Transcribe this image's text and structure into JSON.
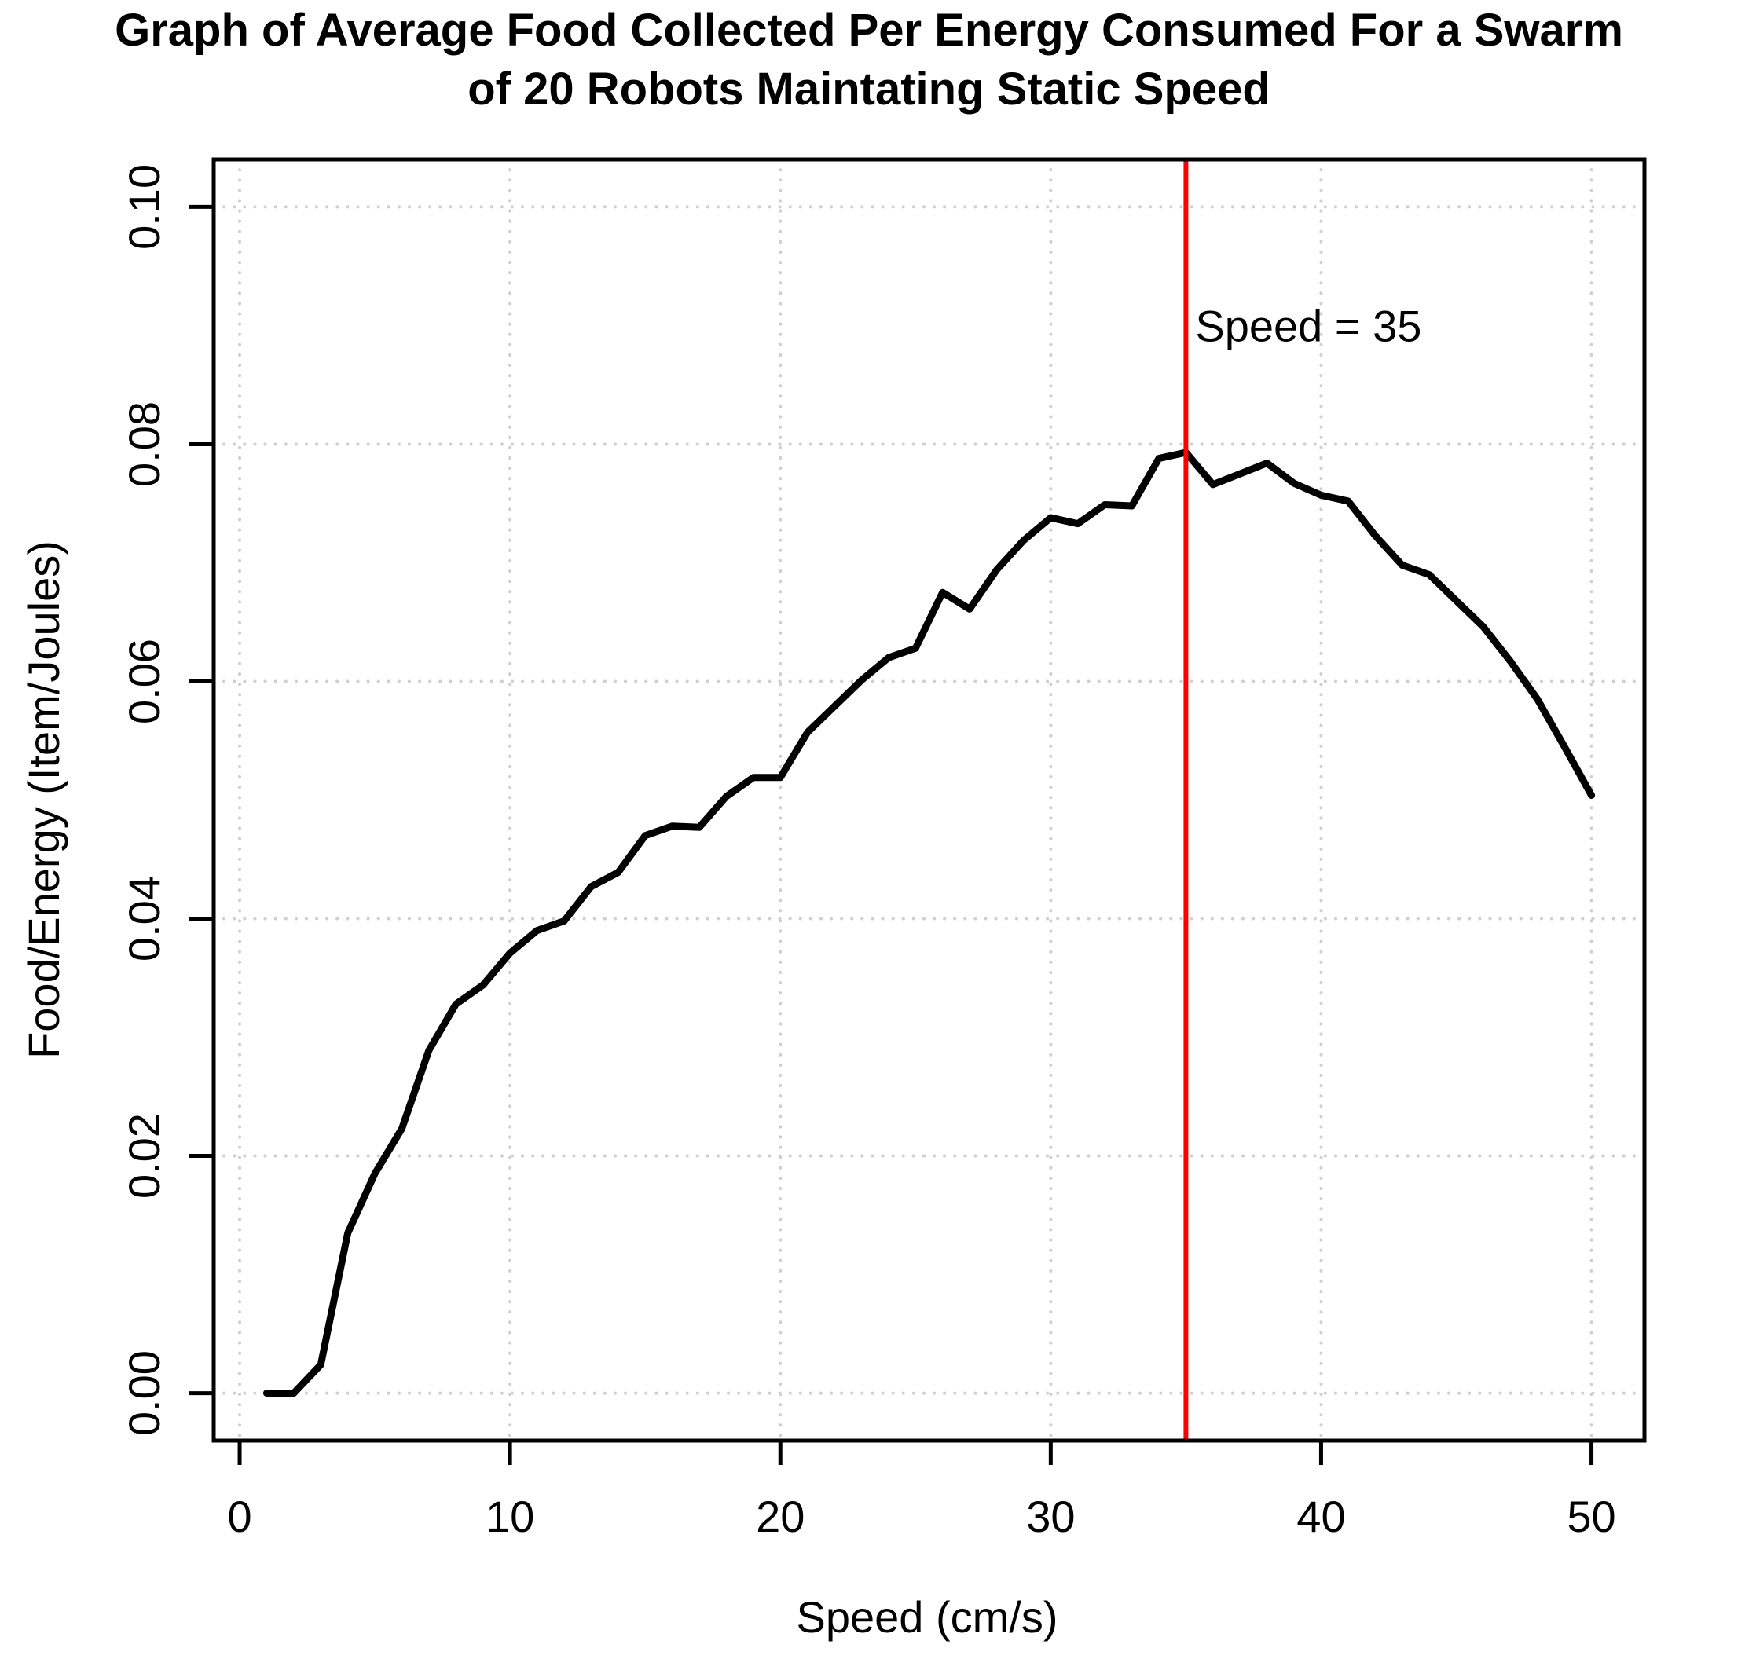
{
  "figure": {
    "title_line1": "Graph of Average Food Collected Per Energy Consumed For a Swarm",
    "title_line2": "of 20 Robots Maintating Static Speed"
  },
  "chart_data": {
    "type": "line",
    "title": "Graph of Average Food Collected Per Energy Consumed For a Swarm of 20 Robots Maintating Static Speed",
    "xlabel": "Speed (cm/s)",
    "ylabel": "Food/Energy (Item/Joules)",
    "xlim": [
      1,
      50
    ],
    "ylim": [
      0,
      0.1
    ],
    "x_tick_values": [
      0,
      10,
      20,
      30,
      40,
      50
    ],
    "x_tick_labels": [
      "0",
      "10",
      "20",
      "30",
      "40",
      "50"
    ],
    "y_tick_values": [
      0.0,
      0.02,
      0.04,
      0.06,
      0.08,
      0.1
    ],
    "y_tick_labels": [
      "0.00",
      "0.02",
      "0.04",
      "0.06",
      "0.08",
      "0.10"
    ],
    "grid": "dotted, at all tick positions",
    "legend": "none",
    "series": [
      {
        "name": "average food collected per energy consumed",
        "x": [
          1,
          2,
          3,
          4,
          5,
          6,
          7,
          8,
          9,
          10,
          11,
          12,
          13,
          14,
          15,
          16,
          17,
          18,
          19,
          20,
          21,
          22,
          23,
          24,
          25,
          26,
          27,
          28,
          29,
          30,
          31,
          32,
          33,
          34,
          35,
          36,
          37,
          38,
          39,
          40,
          41,
          42,
          43,
          44,
          45,
          46,
          47,
          48,
          49,
          50
        ],
        "values": [
          0.0,
          0.0,
          0.0024,
          0.0135,
          0.0185,
          0.0223,
          0.0289,
          0.0328,
          0.0344,
          0.0371,
          0.039,
          0.0398,
          0.0427,
          0.0439,
          0.047,
          0.0478,
          0.0477,
          0.0503,
          0.0519,
          0.0519,
          0.0557,
          0.0579,
          0.0601,
          0.062,
          0.0628,
          0.0675,
          0.0661,
          0.0694,
          0.0719,
          0.0738,
          0.0733,
          0.0749,
          0.0748,
          0.0788,
          0.0793,
          0.0766,
          0.0775,
          0.0784,
          0.0767,
          0.0757,
          0.0752,
          0.0723,
          0.0698,
          0.069,
          0.0668,
          0.0646,
          0.0617,
          0.0585,
          0.0545,
          0.0504
        ]
      }
    ],
    "annotation": {
      "label": "Speed = 35",
      "vline_x": 35,
      "label_y": 0.09
    },
    "colors": {
      "line": "#000000",
      "vline": "#ff0000",
      "grid": "#cfcfcf",
      "frame": "#000000"
    }
  }
}
